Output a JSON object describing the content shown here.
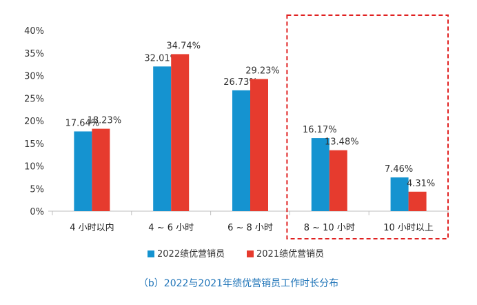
{
  "chart_data": {
    "type": "bar",
    "categories": [
      "4 小时以内",
      "4 ~ 6 小时",
      "6 ~ 8 小时",
      "8 ~ 10 小时",
      "10 小时以上"
    ],
    "series": [
      {
        "name": "2022绩优营销员",
        "values": [
          17.64,
          32.01,
          26.73,
          16.17,
          7.46
        ],
        "labels": [
          "17.64%",
          "32.01%",
          "26.73%",
          "16.17%",
          "7.46%"
        ],
        "color": "#1593d0"
      },
      {
        "name": "2021绩优营销员",
        "values": [
          18.23,
          34.74,
          29.23,
          13.48,
          4.31
        ],
        "labels": [
          "18.23%",
          "34.74%",
          "29.23%",
          "13.48%",
          "4.31%"
        ],
        "color": "#e63b2e"
      }
    ],
    "ylim": [
      0,
      40
    ],
    "yticks": [
      "0%",
      "5%",
      "10%",
      "15%",
      "20%",
      "25%",
      "30%",
      "35%",
      "40%"
    ],
    "grid": false,
    "legend": "bottom",
    "highlight": {
      "categories": [
        "8 ~ 10 小时",
        "10 小时以上"
      ],
      "style": "dashed-box",
      "color": "#e02020"
    },
    "caption": "（b）2022与2021年绩优营销员工作时长分布"
  }
}
